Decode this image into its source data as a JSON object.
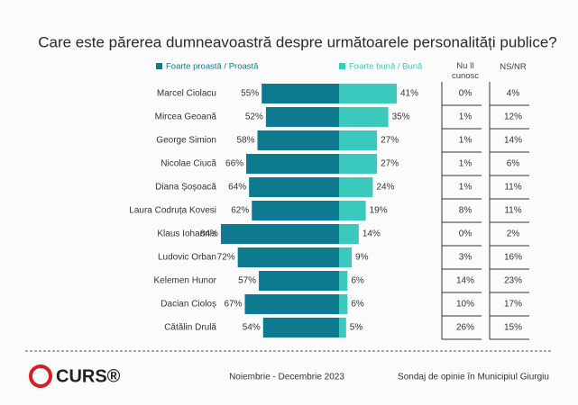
{
  "chart_data": {
    "type": "diverging-bar",
    "title": "Care este părerea dumneavoastră despre următoarele personalități publice?",
    "categories": [
      "Marcel Ciolacu",
      "Mircea Geoană",
      "George Simion",
      "Nicolae Ciucă",
      "Diana Șoșoacă",
      "Laura Codruța Kovesi",
      "Klaus Iohannis",
      "Ludovic Orban",
      "Kelemen Hunor",
      "Dacian Cioloș",
      "Cătălin Drulă"
    ],
    "series": [
      {
        "name": "Foarte proastă / Proastă",
        "color": "#0e7a8f",
        "side": "left",
        "values": [
          55,
          52,
          58,
          66,
          64,
          62,
          84,
          72,
          57,
          67,
          54
        ],
        "value_labels": [
          "55%",
          "52%",
          "58%",
          "66%",
          "64%",
          "62%",
          "84%",
          "72%",
          "57%",
          "67%",
          "54%"
        ]
      },
      {
        "name": "Foarte bună / Bună",
        "color": "#3cc9bd",
        "side": "right",
        "values": [
          41,
          35,
          27,
          27,
          24,
          19,
          14,
          9,
          6,
          6,
          5
        ],
        "value_labels": [
          "41%",
          "35%",
          "27%",
          "27%",
          "24%",
          "19%",
          "14%",
          "9%",
          "6%",
          "6%",
          "5%"
        ]
      }
    ],
    "columns": [
      {
        "name": "Nu îl cunosc",
        "values": [
          0,
          1,
          1,
          1,
          1,
          8,
          0,
          3,
          14,
          10,
          26
        ],
        "value_labels": [
          "0%",
          "1%",
          "1%",
          "1%",
          "1%",
          "8%",
          "0%",
          "3%",
          "14%",
          "10%",
          "26%"
        ]
      },
      {
        "name": "NS/NR",
        "values": [
          4,
          12,
          14,
          6,
          11,
          11,
          2,
          16,
          23,
          17,
          15
        ],
        "value_labels": [
          "4%",
          "12%",
          "14%",
          "6%",
          "11%",
          "11%",
          "2%",
          "16%",
          "23%",
          "17%",
          "15%"
        ]
      }
    ],
    "footer": {
      "logo": "CURS®",
      "period": "Noiembrie - Decembrie 2023",
      "source": "Sondaj de opinie în Municipiul Giurgiu"
    }
  }
}
